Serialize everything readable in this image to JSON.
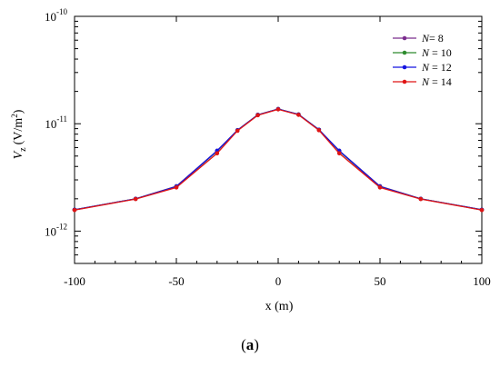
{
  "chart_data": {
    "type": "line",
    "xlabel": "x (m)",
    "ylabel_main": "V",
    "ylabel_sub": "z",
    "ylabel_unit": "(V/m",
    "ylabel_unit_sup": "2",
    "ylabel_unit_close": ")",
    "y_scale": "log",
    "xlim": [
      -100,
      100
    ],
    "ylim": [
      5e-13,
      1e-10
    ],
    "x_ticks": [
      -100,
      -50,
      0,
      50,
      100
    ],
    "x_tick_labels": [
      "-100",
      "-50",
      "0",
      "50",
      "100"
    ],
    "y_ticks": [
      {
        "value": 1e-10,
        "base": "10",
        "exp": "-10"
      },
      {
        "value": 1e-11,
        "base": "10",
        "exp": "-11"
      },
      {
        "value": 1e-12,
        "base": "10",
        "exp": "-12"
      }
    ],
    "grid": false,
    "legend_position": "top-right",
    "x": [
      -100,
      -70,
      -50,
      -30,
      -20,
      -10,
      0,
      10,
      20,
      30,
      50,
      70,
      100
    ],
    "series": [
      {
        "name": "N= 8",
        "name_italic": "N",
        "name_rest": "= 8",
        "color": "#7b2d8e",
        "values": [
          1.58e-12,
          2e-12,
          2.62e-12,
          5.6e-12,
          8.7e-12,
          1.21e-11,
          1.37e-11,
          1.22e-11,
          8.8e-12,
          5.6e-12,
          2.62e-12,
          2e-12,
          1.58e-12
        ]
      },
      {
        "name": "N = 10",
        "name_italic": "N",
        "name_rest": " = 10",
        "color": "#2e8b2e",
        "values": [
          1.58e-12,
          2e-12,
          2.6e-12,
          5.55e-12,
          8.7e-12,
          1.21e-11,
          1.37e-11,
          1.22e-11,
          8.8e-12,
          5.55e-12,
          2.6e-12,
          2e-12,
          1.58e-12
        ]
      },
      {
        "name": "N = 12",
        "name_italic": "N",
        "name_rest": " = 12",
        "color": "#1414e0",
        "values": [
          1.58e-12,
          2e-12,
          2.6e-12,
          5.6e-12,
          8.7e-12,
          1.21e-11,
          1.37e-11,
          1.22e-11,
          8.8e-12,
          5.6e-12,
          2.6e-12,
          2e-12,
          1.58e-12
        ]
      },
      {
        "name": "N = 14",
        "name_italic": "N",
        "name_rest": " = 14",
        "color": "#e01414",
        "values": [
          1.57e-12,
          1.99e-12,
          2.55e-12,
          5.3e-12,
          8.6e-12,
          1.2e-11,
          1.36e-11,
          1.21e-11,
          8.7e-12,
          5.3e-12,
          2.55e-12,
          1.99e-12,
          1.57e-12
        ]
      }
    ]
  },
  "caption": {
    "open": "(",
    "letter": "a",
    "close": ")"
  }
}
